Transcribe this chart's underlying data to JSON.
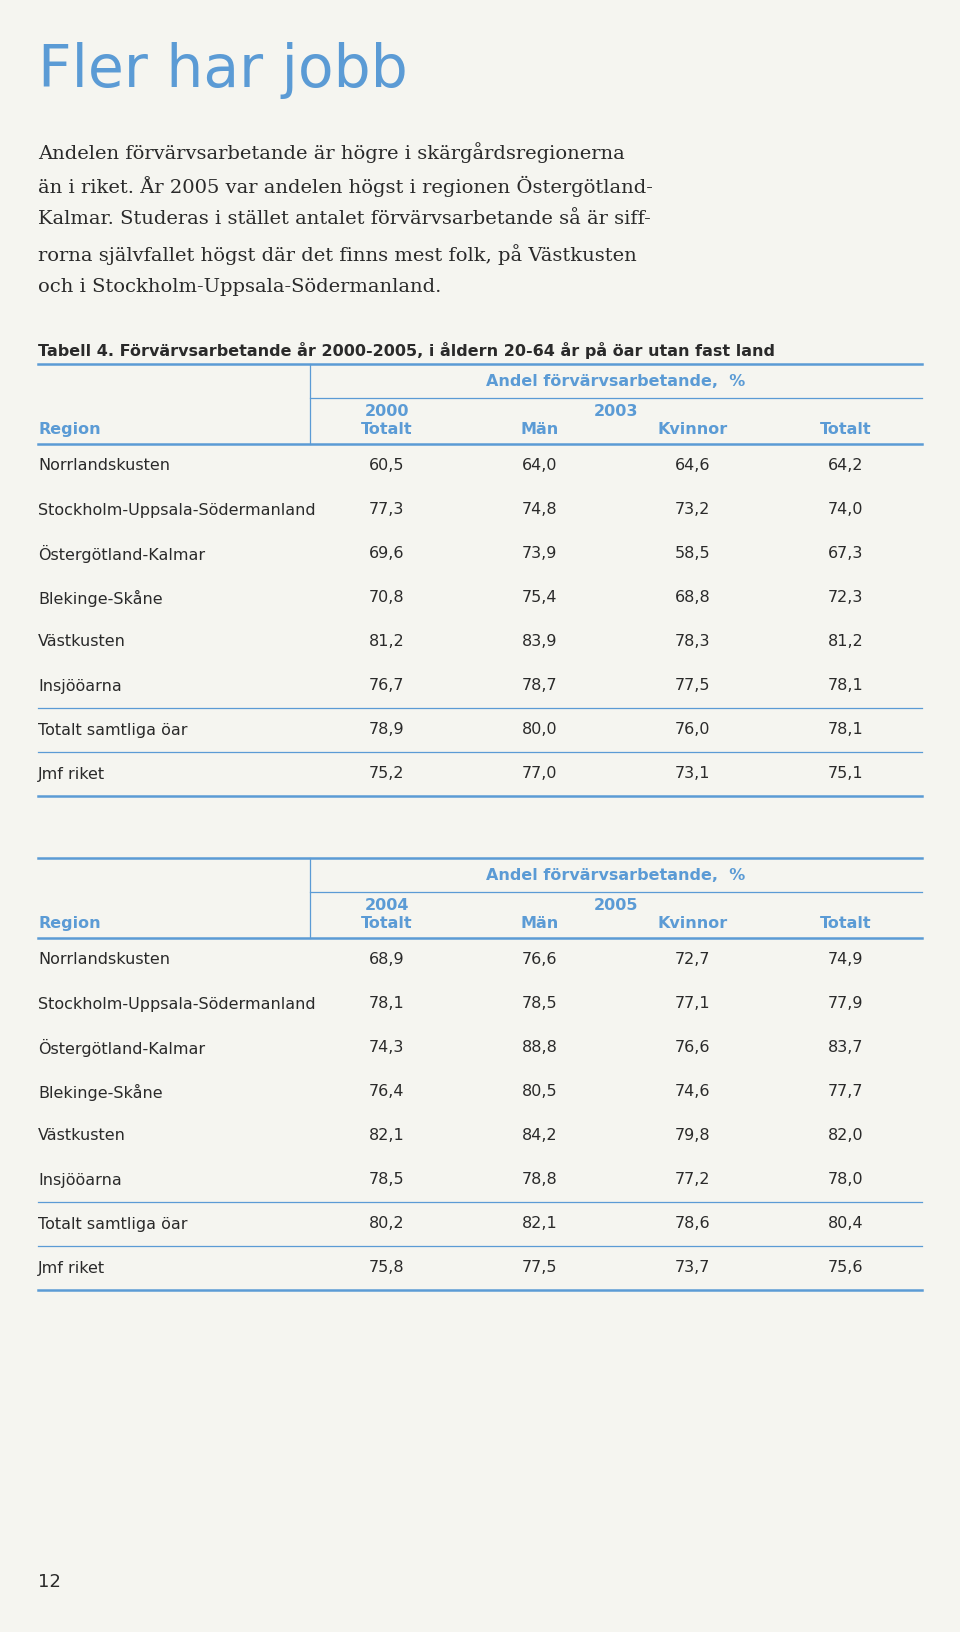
{
  "title": "Fler har jobb",
  "title_color": "#5b9bd5",
  "body_text_lines": [
    "Andelen förvärvsarbetande är högre i skärgårdsregionerna",
    "än i riket. År 2005 var andelen högst i regionen Östergötland-",
    "Kalmar. Studeras i stället antalet förvärvsarbetande så är siff-",
    "rorna självfallet högst där det finns mest folk, på Västkusten",
    "och i Stockholm-Uppsala-Södermanland."
  ],
  "table_caption": "Tabell 4. Förvärvsarbetande år 2000-2005, i åldern 20-64 år på öar utan fast land",
  "table1": {
    "col_header_top": "Andel förvärvsarbetande,  %",
    "year1": "2000",
    "year2": "2003",
    "sub_col1": "Totalt",
    "sub_col2": "Män",
    "sub_col3": "Kvinnor",
    "sub_col4": "Totalt",
    "row_label": "Region",
    "regions": [
      "Norrlandskusten",
      "Stockholm-Uppsala-Södermanland",
      "Östergötland-Kalmar",
      "Blekinge-Skåne",
      "Västkusten",
      "Insjööarna"
    ],
    "totalt_row": "Totalt samtliga öar",
    "jmf_row": "Jmf riket",
    "data": [
      [
        60.5,
        64.0,
        64.6,
        64.2
      ],
      [
        77.3,
        74.8,
        73.2,
        74.0
      ],
      [
        69.6,
        73.9,
        58.5,
        67.3
      ],
      [
        70.8,
        75.4,
        68.8,
        72.3
      ],
      [
        81.2,
        83.9,
        78.3,
        81.2
      ],
      [
        76.7,
        78.7,
        77.5,
        78.1
      ]
    ],
    "totalt_data": [
      78.9,
      80.0,
      76.0,
      78.1
    ],
    "jmf_data": [
      75.2,
      77.0,
      73.1,
      75.1
    ]
  },
  "table2": {
    "col_header_top": "Andel förvärvsarbetande,  %",
    "year1": "2004",
    "year2": "2005",
    "sub_col1": "Totalt",
    "sub_col2": "Män",
    "sub_col3": "Kvinnor",
    "sub_col4": "Totalt",
    "row_label": "Region",
    "regions": [
      "Norrlandskusten",
      "Stockholm-Uppsala-Södermanland",
      "Östergötland-Kalmar",
      "Blekinge-Skåne",
      "Västkusten",
      "Insjööarna"
    ],
    "totalt_row": "Totalt samtliga öar",
    "jmf_row": "Jmf riket",
    "data": [
      [
        68.9,
        76.6,
        72.7,
        74.9
      ],
      [
        78.1,
        78.5,
        77.1,
        77.9
      ],
      [
        74.3,
        88.8,
        76.6,
        83.7
      ],
      [
        76.4,
        80.5,
        74.6,
        77.7
      ],
      [
        82.1,
        84.2,
        79.8,
        82.0
      ],
      [
        78.5,
        78.8,
        77.2,
        78.0
      ]
    ],
    "totalt_data": [
      80.2,
      82.1,
      78.6,
      80.4
    ],
    "jmf_data": [
      75.8,
      77.5,
      73.7,
      75.6
    ]
  },
  "page_number": "12",
  "bg_color": "#f5f5f0",
  "text_color": "#2a2a2a",
  "header_blue": "#5b9bd5",
  "line_color": "#5b9bd5"
}
